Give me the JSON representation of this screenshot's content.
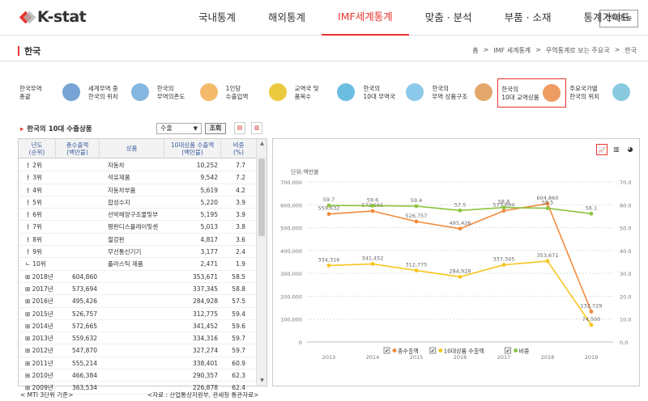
{
  "header": {
    "logo": "K-stat",
    "nav": [
      "국내통계",
      "해외통계",
      "IMF세계통계",
      "맞춤 · 분석",
      "부품 · 소재",
      "통계가이드"
    ],
    "active_nav": 2,
    "all_menu": "전체메뉴"
  },
  "page": {
    "title": "한국",
    "breadcrumb": [
      "홈",
      "IMF 세계통계",
      "무역통계로 보는 주요국",
      "한국"
    ],
    "breadcrumb_sep": ">"
  },
  "tiles": [
    {
      "label": "한국무역\n총괄",
      "color": "#4a86c5"
    },
    {
      "label": "세계무역 중\n한국의 위치",
      "color": "#5d9fd6"
    },
    {
      "label": "한국의\n무역의존도",
      "color": "#f0a33a"
    },
    {
      "label": "1인당\n수출입액",
      "color": "#e6b800"
    },
    {
      "label": "교역국 및\n품목수",
      "color": "#3ba7d8"
    },
    {
      "label": "한국의\n10대 무역국",
      "color": "#67b7e3"
    },
    {
      "label": "한국의\n무역 상품구조",
      "color": "#d98a3a"
    },
    {
      "label": "한국의\n10대 교역상품",
      "color": "#e87c2e"
    },
    {
      "label": "주요국가별\n한국의 위치",
      "color": "#63b8d5"
    }
  ],
  "active_tile": 7,
  "controls": {
    "section_title": "한국의 10대 수출상품",
    "select_value": "수출",
    "query_button": "조회"
  },
  "table": {
    "headers": [
      "년도\n(순위)",
      "총수출액\n(백만불)",
      "상품",
      "10대상품 수출액\n(백만불)",
      "비중\n(%)"
    ],
    "rows": [
      {
        "c0": "ㅏ 2위",
        "c1": "",
        "c2": "자동차",
        "c3": "10,252",
        "c4": "7.7"
      },
      {
        "c0": "ㅏ 3위",
        "c1": "",
        "c2": "석유제품",
        "c3": "9,542",
        "c4": "7.2"
      },
      {
        "c0": "ㅏ 4위",
        "c1": "",
        "c2": "자동차부품",
        "c3": "5,619",
        "c4": "4.2"
      },
      {
        "c0": "ㅏ 5위",
        "c1": "",
        "c2": "합성수지",
        "c3": "5,220",
        "c4": "3.9"
      },
      {
        "c0": "ㅏ 6위",
        "c1": "",
        "c2": "선박해양구조물및부",
        "c3": "5,195",
        "c4": "3.9"
      },
      {
        "c0": "ㅏ 7위",
        "c1": "",
        "c2": "평판디스플레이및센",
        "c3": "5,013",
        "c4": "3.8"
      },
      {
        "c0": "ㅏ 8위",
        "c1": "",
        "c2": "철강판",
        "c3": "4,817",
        "c4": "3.6"
      },
      {
        "c0": "ㅏ 9위",
        "c1": "",
        "c2": "무선통신기기",
        "c3": "3,177",
        "c4": "2.4"
      },
      {
        "c0": "ㄴ 10위",
        "c1": "",
        "c2": "플라스틱 제품",
        "c3": "2,471",
        "c4": "1.9"
      },
      {
        "c0": "⊞ 2018년",
        "c1": "604,860",
        "c2": "",
        "c3": "353,671",
        "c4": "58.5"
      },
      {
        "c0": "⊞ 2017년",
        "c1": "573,694",
        "c2": "",
        "c3": "337,345",
        "c4": "58.8"
      },
      {
        "c0": "⊞ 2016년",
        "c1": "495,426",
        "c2": "",
        "c3": "284,928",
        "c4": "57.5"
      },
      {
        "c0": "⊞ 2015년",
        "c1": "526,757",
        "c2": "",
        "c3": "312,775",
        "c4": "59.4"
      },
      {
        "c0": "⊞ 2014년",
        "c1": "572,665",
        "c2": "",
        "c3": "341,452",
        "c4": "59.6"
      },
      {
        "c0": "⊞ 2013년",
        "c1": "559,632",
        "c2": "",
        "c3": "334,316",
        "c4": "59.7"
      },
      {
        "c0": "⊞ 2012년",
        "c1": "547,870",
        "c2": "",
        "c3": "327,274",
        "c4": "59.7"
      },
      {
        "c0": "⊞ 2011년",
        "c1": "555,214",
        "c2": "",
        "c3": "338,401",
        "c4": "60.9"
      },
      {
        "c0": "⊞ 2010년",
        "c1": "466,384",
        "c2": "",
        "c3": "290,357",
        "c4": "62.3"
      },
      {
        "c0": "⊞ 2009년",
        "c1": "363,534",
        "c2": "",
        "c3": "226,878",
        "c4": "62.4"
      }
    ]
  },
  "chart_data": {
    "type": "line",
    "unit_label": "단위:백만불",
    "x": [
      "2013",
      "2014",
      "2015",
      "2016",
      "2017",
      "2018",
      "2019"
    ],
    "y_left": {
      "min": 0,
      "max": 700000,
      "ticks": [
        "0",
        "100,000",
        "200,000",
        "300,000",
        "400,000",
        "500,000",
        "600,000",
        "700,000"
      ]
    },
    "y_right": {
      "min": 0,
      "max": 70,
      "ticks": [
        "0.0",
        "10.0",
        "20.0",
        "30.0",
        "40.0",
        "50.0",
        "60.0",
        "70.0"
      ]
    },
    "series": [
      {
        "name": "총수출액",
        "axis": "left",
        "color": "#f28a3c",
        "values": [
          559632,
          572665,
          526757,
          495426,
          573694,
          604860,
          132729
        ],
        "labels": [
          "559,632",
          "572,665",
          "526,757",
          "495,426",
          "573,694",
          "604,860",
          "132,729"
        ]
      },
      {
        "name": "10대상품 수출액",
        "axis": "left",
        "color": "#f7c51e",
        "values": [
          334316,
          341452,
          312775,
          284928,
          337345,
          353671,
          74500
        ],
        "labels": [
          "334,316",
          "341,452",
          "312,775",
          "284,928",
          "337,345",
          "353,671",
          "74,500"
        ]
      },
      {
        "name": "비중",
        "axis": "right",
        "color": "#8cc43f",
        "values": [
          59.7,
          59.6,
          59.4,
          57.5,
          58.8,
          58.5,
          56.1
        ],
        "labels": [
          "59.7",
          "59.6",
          "59.4",
          "57.5",
          "58.8",
          "58.5",
          "56.1"
        ]
      }
    ],
    "legend_placement": "bottom"
  },
  "footer": {
    "left": "< MTI 3단위 기준>",
    "right": "<자료 : 산업통상자원부, 관세청 통관자료>"
  }
}
